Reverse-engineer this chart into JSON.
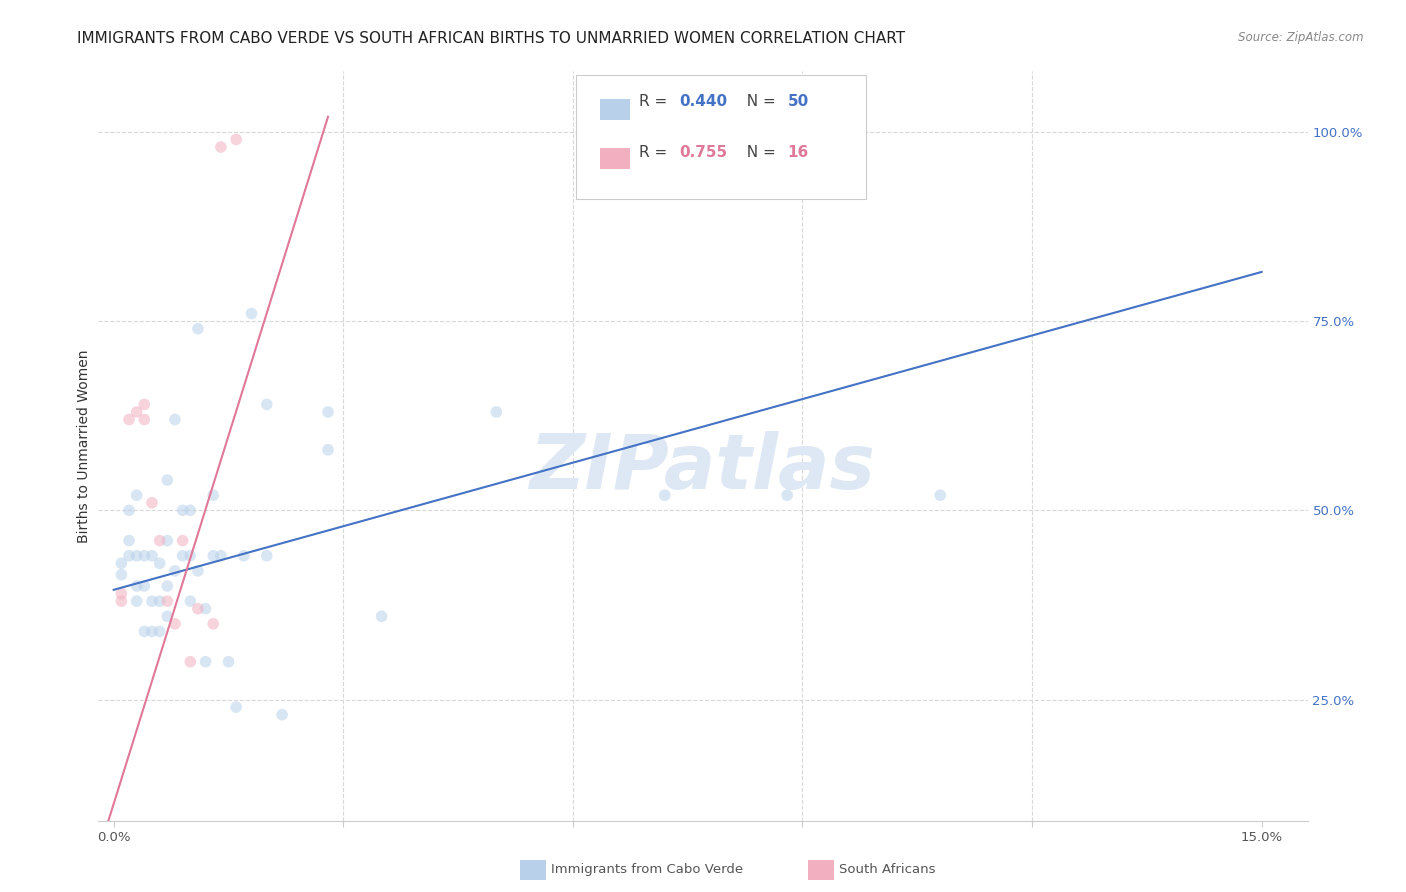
{
  "title": "IMMIGRANTS FROM CABO VERDE VS SOUTH AFRICAN BIRTHS TO UNMARRIED WOMEN CORRELATION CHART",
  "source": "Source: ZipAtlas.com",
  "ylabel_label": "Births to Unmarried Women",
  "blue_R": 0.44,
  "blue_N": 50,
  "pink_R": 0.755,
  "pink_N": 16,
  "blue_scatter_x": [
    0.001,
    0.001,
    0.002,
    0.002,
    0.002,
    0.003,
    0.003,
    0.003,
    0.003,
    0.004,
    0.004,
    0.004,
    0.005,
    0.005,
    0.005,
    0.006,
    0.006,
    0.006,
    0.007,
    0.007,
    0.007,
    0.007,
    0.008,
    0.008,
    0.009,
    0.009,
    0.01,
    0.01,
    0.01,
    0.011,
    0.011,
    0.012,
    0.012,
    0.013,
    0.013,
    0.014,
    0.015,
    0.016,
    0.017,
    0.018,
    0.02,
    0.02,
    0.022,
    0.028,
    0.028,
    0.035,
    0.05,
    0.072,
    0.088,
    0.108
  ],
  "blue_scatter_y": [
    0.415,
    0.43,
    0.44,
    0.46,
    0.5,
    0.38,
    0.4,
    0.44,
    0.52,
    0.34,
    0.4,
    0.44,
    0.34,
    0.38,
    0.44,
    0.34,
    0.38,
    0.43,
    0.36,
    0.4,
    0.46,
    0.54,
    0.42,
    0.62,
    0.44,
    0.5,
    0.38,
    0.44,
    0.5,
    0.42,
    0.74,
    0.3,
    0.37,
    0.44,
    0.52,
    0.44,
    0.3,
    0.24,
    0.44,
    0.76,
    0.44,
    0.64,
    0.23,
    0.63,
    0.58,
    0.36,
    0.63,
    0.52,
    0.52,
    0.52
  ],
  "pink_scatter_x": [
    0.001,
    0.001,
    0.002,
    0.003,
    0.004,
    0.004,
    0.005,
    0.006,
    0.007,
    0.008,
    0.009,
    0.01,
    0.011,
    0.013,
    0.014,
    0.016
  ],
  "pink_scatter_y": [
    0.38,
    0.39,
    0.62,
    0.63,
    0.62,
    0.64,
    0.51,
    0.46,
    0.38,
    0.35,
    0.46,
    0.3,
    0.37,
    0.35,
    0.98,
    0.99
  ],
  "blue_line_x": [
    0.0,
    0.15
  ],
  "blue_line_y": [
    0.395,
    0.815
  ],
  "pink_line_x": [
    -0.001,
    0.028
  ],
  "pink_line_y": [
    0.08,
    1.02
  ],
  "scatter_size": 70,
  "scatter_alpha": 0.55,
  "blue_color": "#b8d0ea",
  "pink_color": "#f2afc0",
  "blue_line_color": "#4472c4",
  "pink_line_color": "#e07898",
  "grid_color": "#d8d8d8",
  "watermark": "ZIPatlas",
  "watermark_color": "#dde8f4",
  "watermark_fontsize": 55,
  "background_color": "#ffffff",
  "title_fontsize": 11,
  "axis_label_fontsize": 10,
  "tick_label_fontsize": 9.5,
  "xlim": [
    -0.002,
    0.156
  ],
  "ylim": [
    0.09,
    1.08
  ]
}
